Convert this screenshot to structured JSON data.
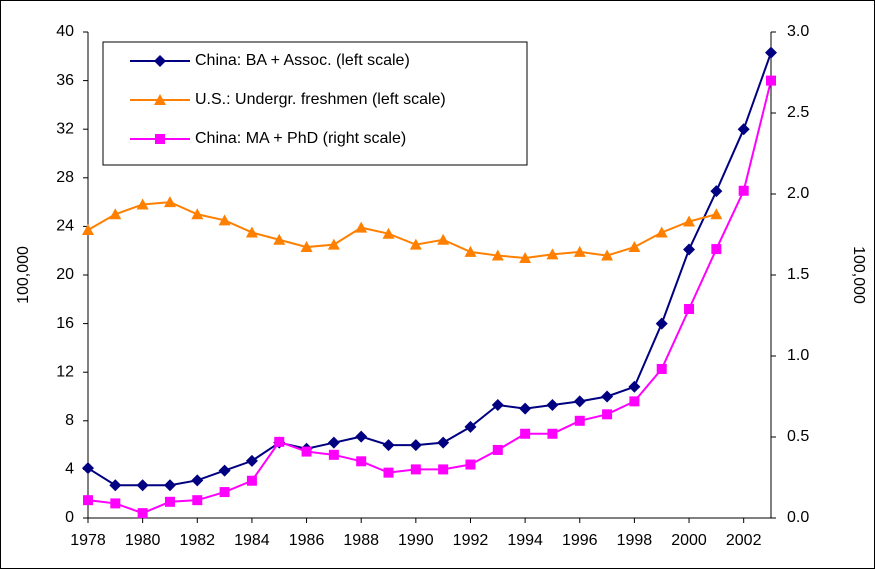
{
  "chart_data": {
    "type": "line",
    "x": [
      1978,
      1979,
      1980,
      1981,
      1982,
      1983,
      1984,
      1985,
      1986,
      1987,
      1988,
      1989,
      1990,
      1991,
      1992,
      1993,
      1994,
      1995,
      1996,
      1997,
      1998,
      1999,
      2000,
      2001,
      2002,
      2003
    ],
    "xlim": [
      1978,
      2003
    ],
    "xticks": [
      1978,
      1980,
      1982,
      1984,
      1986,
      1988,
      1990,
      1992,
      1994,
      1996,
      1998,
      2000,
      2002
    ],
    "ylabel": "100,000",
    "y2label": "100,000",
    "ylim": [
      0,
      40
    ],
    "yticks": [
      0,
      4,
      8,
      12,
      16,
      20,
      24,
      28,
      32,
      36,
      40
    ],
    "y2lim": [
      0,
      3
    ],
    "y2ticks": [
      {
        "value": 0,
        "label": "0.0"
      },
      0.5,
      {
        "value": 1,
        "label": "1.0"
      },
      1.5,
      {
        "value": 2,
        "label": "2.0"
      },
      2.5,
      {
        "value": 3,
        "label": "3.0"
      }
    ],
    "grid": false,
    "legend": "upper left",
    "series": [
      {
        "name": "China: BA + Assoc. (left scale)",
        "color": "#000080",
        "marker": "diamond",
        "values": [
          4.1,
          2.7,
          2.7,
          2.7,
          3.1,
          3.9,
          4.7,
          6.2,
          5.7,
          6.2,
          6.7,
          6.0,
          6.0,
          6.2,
          7.5,
          9.3,
          9.0,
          9.3,
          9.6,
          10.0,
          10.8,
          16.0,
          22.1,
          26.9,
          32.0,
          38.3
        ]
      },
      {
        "name": "U.S.: Undergr. freshmen (left scale)",
        "color": "#ff8000",
        "marker": "triangle",
        "values": [
          23.7,
          25.0,
          25.8,
          26.0,
          25.0,
          24.5,
          23.5,
          22.9,
          22.3,
          22.5,
          23.9,
          23.4,
          22.5,
          22.9,
          21.9,
          21.6,
          21.4,
          21.7,
          21.9,
          21.6,
          22.3,
          23.5,
          24.4,
          25.0,
          null,
          null
        ]
      },
      {
        "name": "China: MA + PhD (right scale)",
        "color": "#ff00ff",
        "marker": "square",
        "axis": "y2",
        "values": [
          0.11,
          0.09,
          0.03,
          0.1,
          0.11,
          0.16,
          0.23,
          0.47,
          0.41,
          0.39,
          0.35,
          0.28,
          0.3,
          0.3,
          0.33,
          0.42,
          0.52,
          0.52,
          0.6,
          0.64,
          0.72,
          0.92,
          1.29,
          1.66,
          2.02,
          2.7
        ]
      }
    ]
  }
}
